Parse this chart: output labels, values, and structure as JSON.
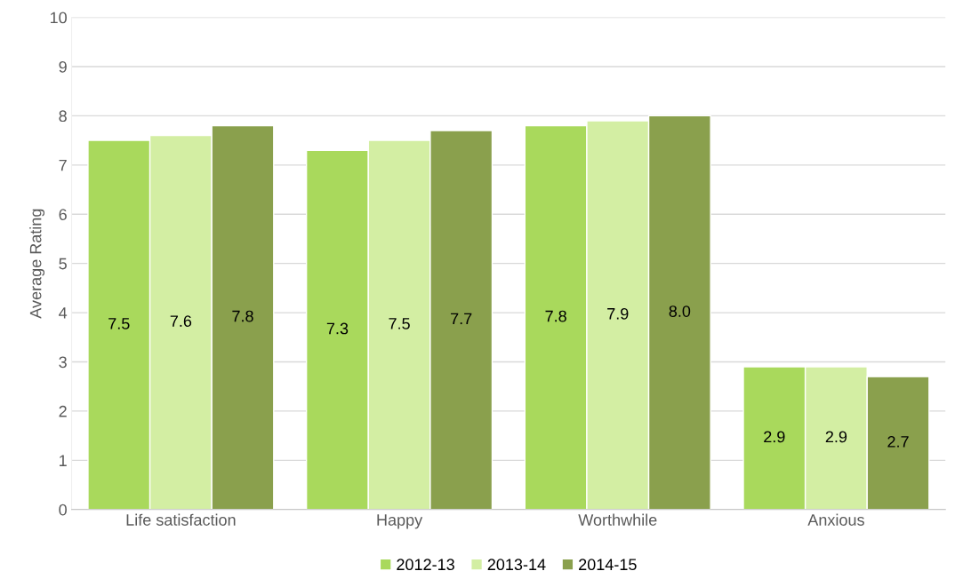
{
  "chart_data": {
    "type": "bar",
    "ylabel": "Average Rating",
    "categories": [
      "Life satisfaction",
      "Happy",
      "Worthwhile",
      "Anxious"
    ],
    "series": [
      {
        "name": "2012-13",
        "color": "#a9d95c",
        "values": [
          7.5,
          7.3,
          7.8,
          2.9
        ],
        "value_labels": [
          "7.5",
          "7.3",
          "7.8",
          "2.9"
        ]
      },
      {
        "name": "2013-14",
        "color": "#d3eea3",
        "values": [
          7.6,
          7.5,
          7.9,
          2.9
        ],
        "value_labels": [
          "7.6",
          "7.5",
          "7.9",
          "2.9"
        ]
      },
      {
        "name": "2014-15",
        "color": "#8aa04d",
        "values": [
          7.8,
          7.7,
          8.0,
          2.7
        ],
        "value_labels": [
          "7.8",
          "7.7",
          "8.0",
          "2.7"
        ]
      }
    ],
    "ylim": [
      0,
      10
    ],
    "yticks": [
      0,
      1,
      2,
      3,
      4,
      5,
      6,
      7,
      8,
      9,
      10
    ],
    "grid": "y",
    "legend": "bottom"
  }
}
